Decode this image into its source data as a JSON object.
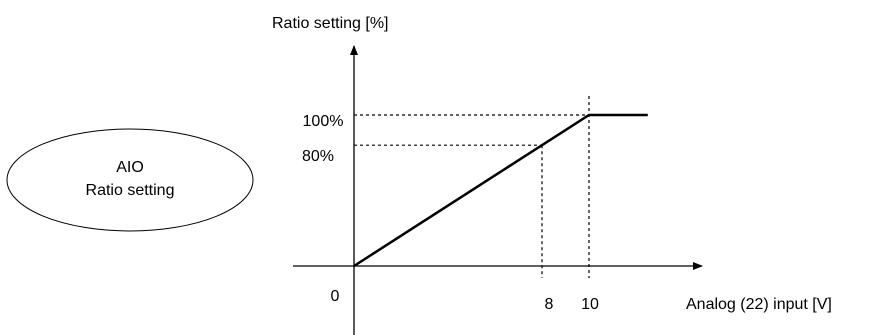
{
  "badge": {
    "line1": "AIO",
    "line2": "Ratio setting"
  },
  "chart_data": {
    "type": "line",
    "ylabel": "Ratio setting [%]",
    "xlabel": "Analog (22) input [V]",
    "origin_label": "0",
    "x_ticks": [
      "8",
      "10"
    ],
    "y_ticks": [
      "100%",
      "80%"
    ],
    "series": [
      {
        "x": [
          0,
          10,
          12.5
        ],
        "y": [
          0,
          100,
          100
        ]
      }
    ],
    "reference_points": [
      {
        "x": 8,
        "y": 80
      },
      {
        "x": 10,
        "y": 100
      }
    ],
    "xlim": [
      0,
      12.5
    ],
    "ylim": [
      0,
      100
    ],
    "grid": false
  }
}
